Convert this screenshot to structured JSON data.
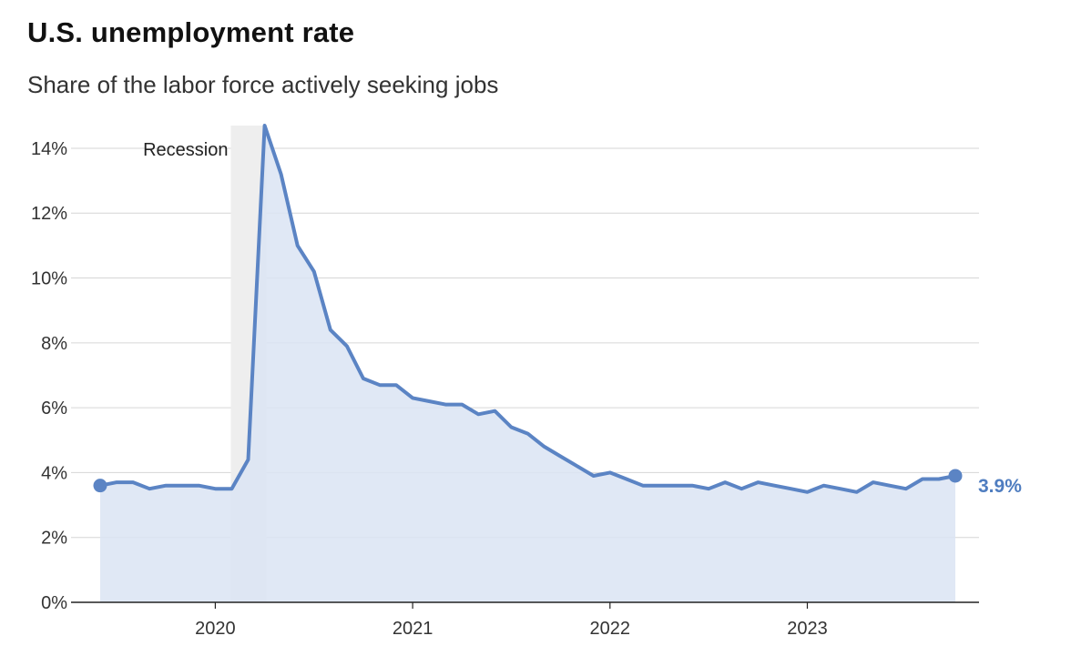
{
  "title": "U.S. unemployment rate",
  "subtitle": "Share of the labor force actively seeking jobs",
  "colors": {
    "line": "#5b84c4",
    "area": "#dbe4f3",
    "recession": "#eeeeee",
    "grid": "#d6d6d6",
    "axis": "#222222",
    "end_label": "#4f7dc0"
  },
  "chart_data": {
    "type": "area",
    "title": "U.S. unemployment rate",
    "subtitle": "Share of the labor force actively seeking jobs",
    "xlabel": "",
    "ylabel": "",
    "x_ticks": [
      "2020",
      "2021",
      "2022",
      "2023"
    ],
    "y_ticks": [
      "0%",
      "2%",
      "4%",
      "6%",
      "8%",
      "10%",
      "12%",
      "14%"
    ],
    "ylim": [
      0,
      14.7
    ],
    "x_range": [
      "2019-06",
      "2023-10"
    ],
    "grid": true,
    "annotations": [
      {
        "label": "Recession",
        "start": "2020-02",
        "end": "2020-04"
      }
    ],
    "end_label": "3.9%",
    "series": [
      {
        "x": [
          "2019-06",
          "2019-07",
          "2019-08",
          "2019-09",
          "2019-10",
          "2019-11",
          "2019-12",
          "2020-01",
          "2020-02",
          "2020-03",
          "2020-04",
          "2020-05",
          "2020-06",
          "2020-07",
          "2020-08",
          "2020-09",
          "2020-10",
          "2020-11",
          "2020-12",
          "2021-01",
          "2021-02",
          "2021-03",
          "2021-04",
          "2021-05",
          "2021-06",
          "2021-07",
          "2021-08",
          "2021-09",
          "2021-10",
          "2021-11",
          "2021-12",
          "2022-01",
          "2022-02",
          "2022-03",
          "2022-04",
          "2022-05",
          "2022-06",
          "2022-07",
          "2022-08",
          "2022-09",
          "2022-10",
          "2022-11",
          "2022-12",
          "2023-01",
          "2023-02",
          "2023-03",
          "2023-04",
          "2023-05",
          "2023-06",
          "2023-07",
          "2023-08",
          "2023-09",
          "2023-10"
        ],
        "values": [
          3.6,
          3.7,
          3.7,
          3.5,
          3.6,
          3.6,
          3.6,
          3.5,
          3.5,
          4.4,
          14.7,
          13.2,
          11.0,
          10.2,
          8.4,
          7.9,
          6.9,
          6.7,
          6.7,
          6.3,
          6.2,
          6.1,
          6.1,
          5.8,
          5.9,
          5.4,
          5.2,
          4.8,
          4.5,
          4.2,
          3.9,
          4.0,
          3.8,
          3.6,
          3.6,
          3.6,
          3.6,
          3.5,
          3.7,
          3.5,
          3.7,
          3.6,
          3.5,
          3.4,
          3.6,
          3.5,
          3.4,
          3.7,
          3.6,
          3.5,
          3.8,
          3.8,
          3.9
        ]
      }
    ]
  }
}
